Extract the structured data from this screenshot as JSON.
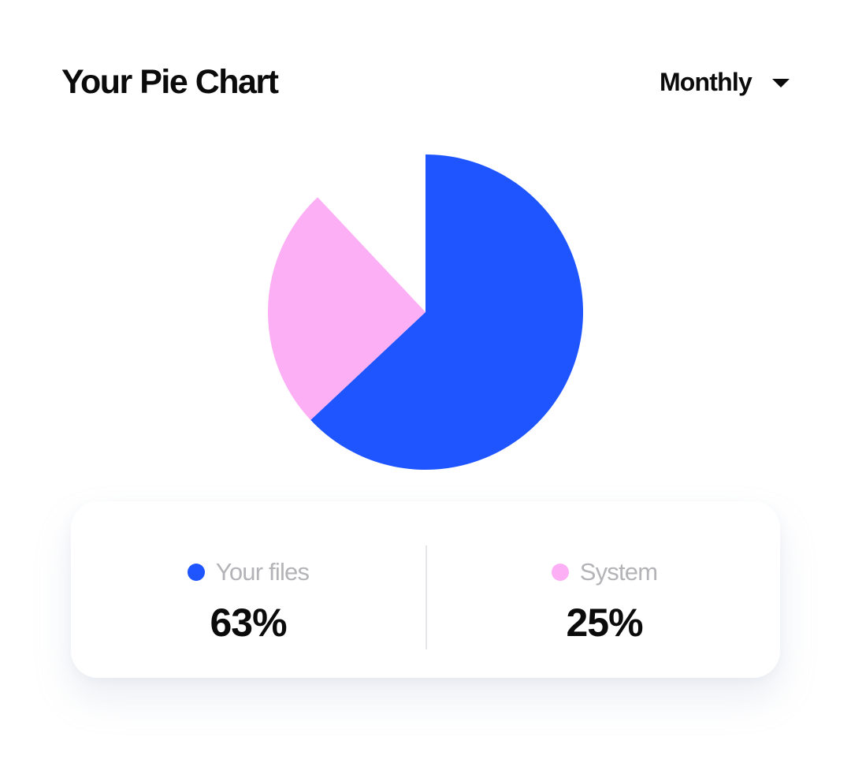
{
  "header": {
    "title": "Your Pie Chart",
    "period_selected": "Monthly"
  },
  "colors": {
    "your_files": "#1f55ff",
    "system": "#fcaff5"
  },
  "chart_data": {
    "type": "pie",
    "title": "Your Pie Chart",
    "slices": [
      {
        "label": "Your files",
        "value": 63,
        "display": "63%",
        "color": "#1f55ff"
      },
      {
        "label": "System",
        "value": 25,
        "display": "25%",
        "color": "#fcaff5"
      }
    ],
    "start_angle_deg": 0,
    "direction": "clockwise",
    "legend": "bottom"
  }
}
